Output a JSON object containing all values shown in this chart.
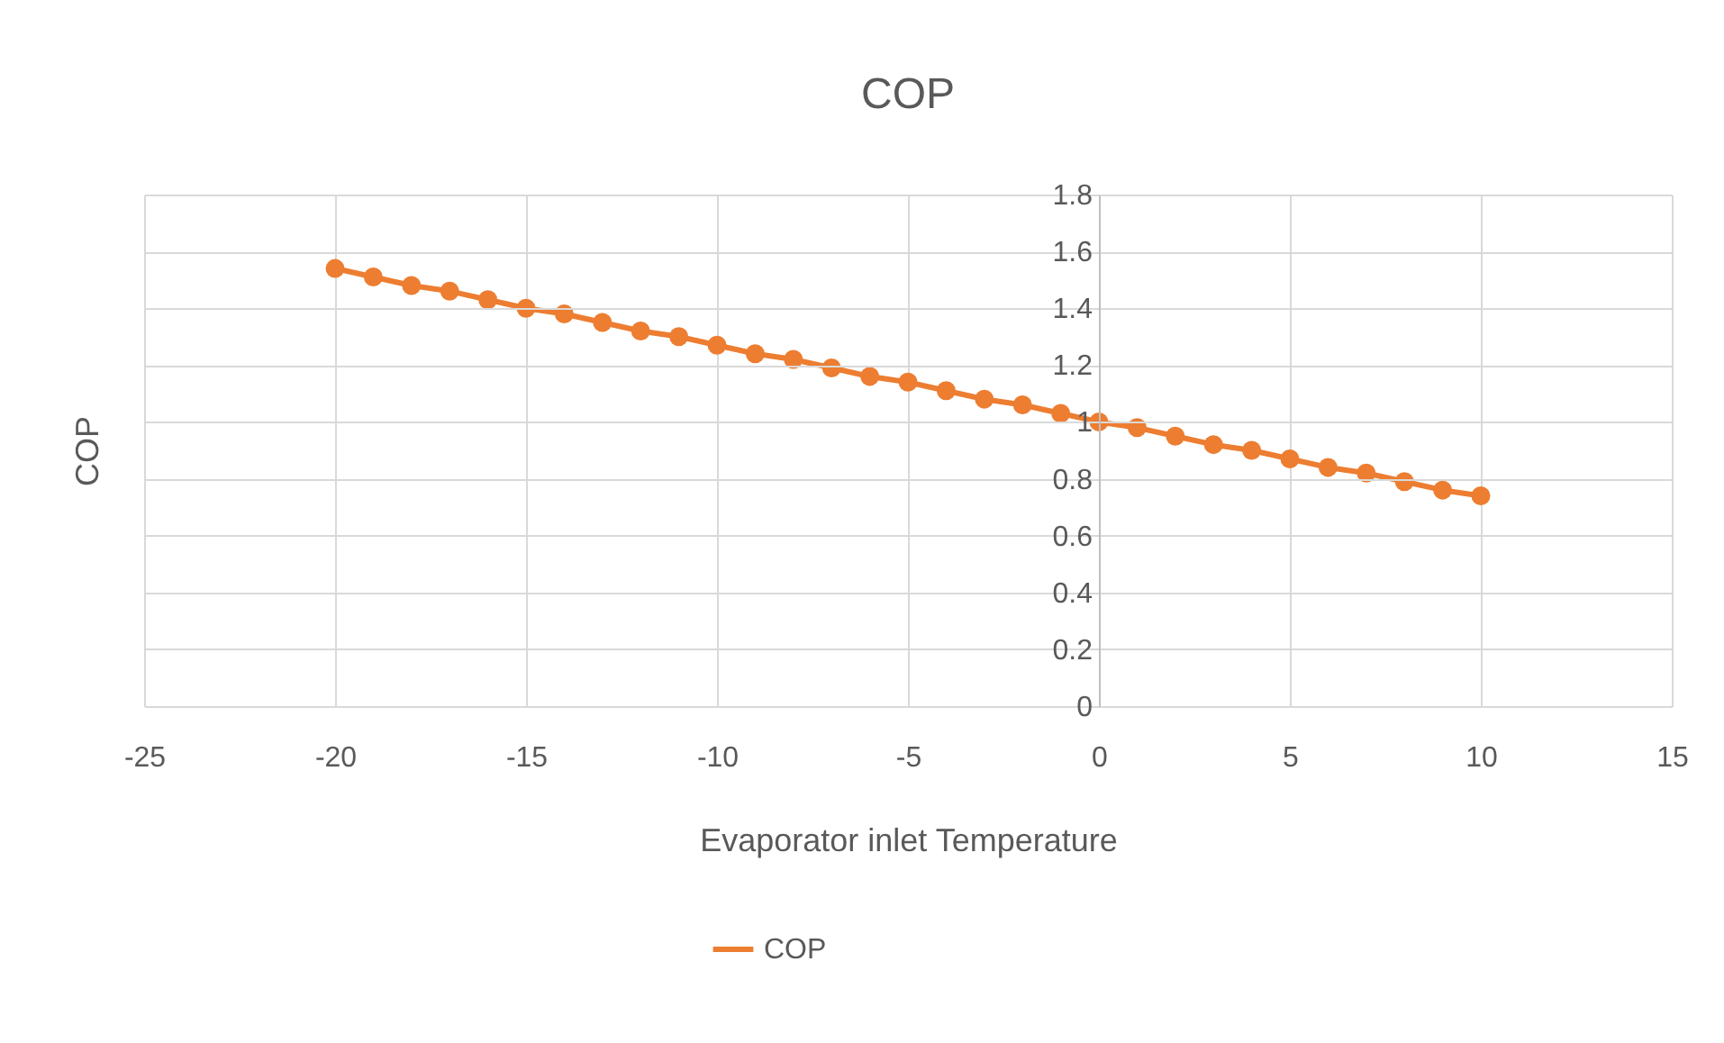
{
  "chart_data": {
    "type": "line",
    "title": "COP",
    "xlabel": "Evaporator inlet Temperature",
    "ylabel": "COP",
    "x": [
      -20,
      -19,
      -18,
      -17,
      -16,
      -15,
      -14,
      -13,
      -12,
      -11,
      -10,
      -9,
      -8,
      -7,
      -6,
      -5,
      -4,
      -3,
      -2,
      -1,
      0,
      1,
      2,
      3,
      4,
      5,
      6,
      7,
      8,
      9,
      10
    ],
    "series": [
      {
        "name": "COP",
        "color": "#ed7d31",
        "values": [
          1.54,
          1.51,
          1.48,
          1.46,
          1.43,
          1.4,
          1.38,
          1.35,
          1.32,
          1.3,
          1.27,
          1.24,
          1.22,
          1.19,
          1.16,
          1.14,
          1.11,
          1.08,
          1.06,
          1.03,
          1.0,
          0.98,
          0.95,
          0.92,
          0.9,
          0.87,
          0.84,
          0.82,
          0.79,
          0.76,
          0.74
        ]
      }
    ],
    "xlim": [
      -25,
      15
    ],
    "xticks": [
      -25,
      -20,
      -15,
      -10,
      -5,
      0,
      5,
      10,
      15
    ],
    "ylim": [
      0,
      1.8
    ],
    "yticks": [
      0,
      0.2,
      0.4,
      0.6,
      0.8,
      1,
      1.2,
      1.4,
      1.6,
      1.8
    ],
    "grid": true,
    "legend": "bottom",
    "marker": "circle",
    "line_style": "solid"
  }
}
